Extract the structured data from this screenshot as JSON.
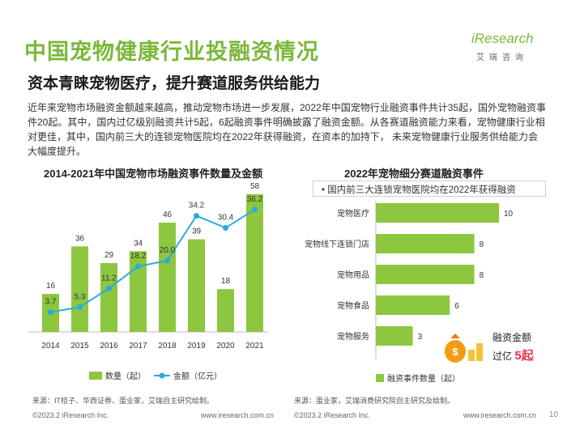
{
  "header": {
    "title": "中国宠物健康行业投融资情况",
    "subtitle": "资本青睐宠物医疗，提升赛道服务供给能力",
    "logo_main": "iResearch",
    "logo_sub": "艾瑞咨询"
  },
  "intro": {
    "text": "近年来宠物市场融资金额越来越高，推动宠物市场进一步发展，2022年中国宠物行业融资事件共计35起，国外宠物融资事件20起。其中，国内过亿级别融资共计5起，6起融资事件明确披露了融资金额。从各赛道融资能力来看，宠物健康行业相对更佳，其中，国内前三大的连锁宠物医院均在2022年获得融资，在资本的加持下， 未来宠物健康行业服务供给能力会大幅度提升。"
  },
  "chart_data": [
    {
      "type": "bar+line",
      "title": "2014-2021年中国宠物市场融资事件数量及金额",
      "categories": [
        "2014",
        "2015",
        "2016",
        "2017",
        "2018",
        "2019",
        "2020",
        "2021"
      ],
      "series": [
        {
          "name": "数量（起）",
          "type": "bar",
          "values": [
            16,
            36,
            29,
            34,
            46,
            39,
            18,
            58
          ]
        },
        {
          "name": "金额（亿元）",
          "type": "line",
          "values": [
            3.7,
            5.3,
            11.2,
            18.2,
            20.0,
            34.2,
            30.4,
            36.2
          ]
        }
      ],
      "labels": {
        "bar": [
          "16",
          "36",
          "29",
          "34",
          "46",
          "39",
          "18",
          "58"
        ],
        "line": [
          "3.7",
          "5.3",
          "11.2",
          "18.2",
          "20.0",
          "34.2",
          "30.4",
          "36.2"
        ]
      },
      "ylim": [
        0,
        60
      ],
      "legend": [
        "数量（起）",
        "金额（亿元）"
      ],
      "legend_position": "bottom"
    },
    {
      "type": "bar",
      "orientation": "horizontal",
      "title": "2022年宠物细分赛道融资事件",
      "categories": [
        "宠物医疗",
        "宠物线下连锁门店",
        "宠物用品",
        "宠物食品",
        "宠物服务"
      ],
      "values": [
        10,
        8,
        8,
        6,
        3
      ],
      "value_labels": [
        "10",
        "8",
        "8",
        "6",
        "3"
      ],
      "xlim": [
        0,
        10
      ],
      "legend": [
        "融资事件数量（起）"
      ],
      "legend_position": "bottom",
      "note": "•  国内前三大连锁宠物医院均在2022年获得融资",
      "badge": {
        "line1": "融资金额",
        "line2_prefix": "过亿",
        "line2_number": "5",
        "line2_suffix": "起"
      }
    }
  ],
  "footnotes": {
    "left": "来源：IT桔子、华西证券、蛋业家，艾瑞自主研究绘制。",
    "right": "来源：蛋业家，艾瑞消费研究院自主研究及绘制。"
  },
  "footer": {
    "left_copyright": "©2023.2 iResearch Inc.",
    "left_url": "www.iresearch.com.cn",
    "right_copyright": "©2023.2 iResearch Inc.",
    "right_url": "www.iresearch.com.cn",
    "page": "10"
  },
  "colors": {
    "accent": "#8dc63f",
    "line": "#29abe2",
    "title": "#7ab83a",
    "highlight": "#e8334a"
  }
}
